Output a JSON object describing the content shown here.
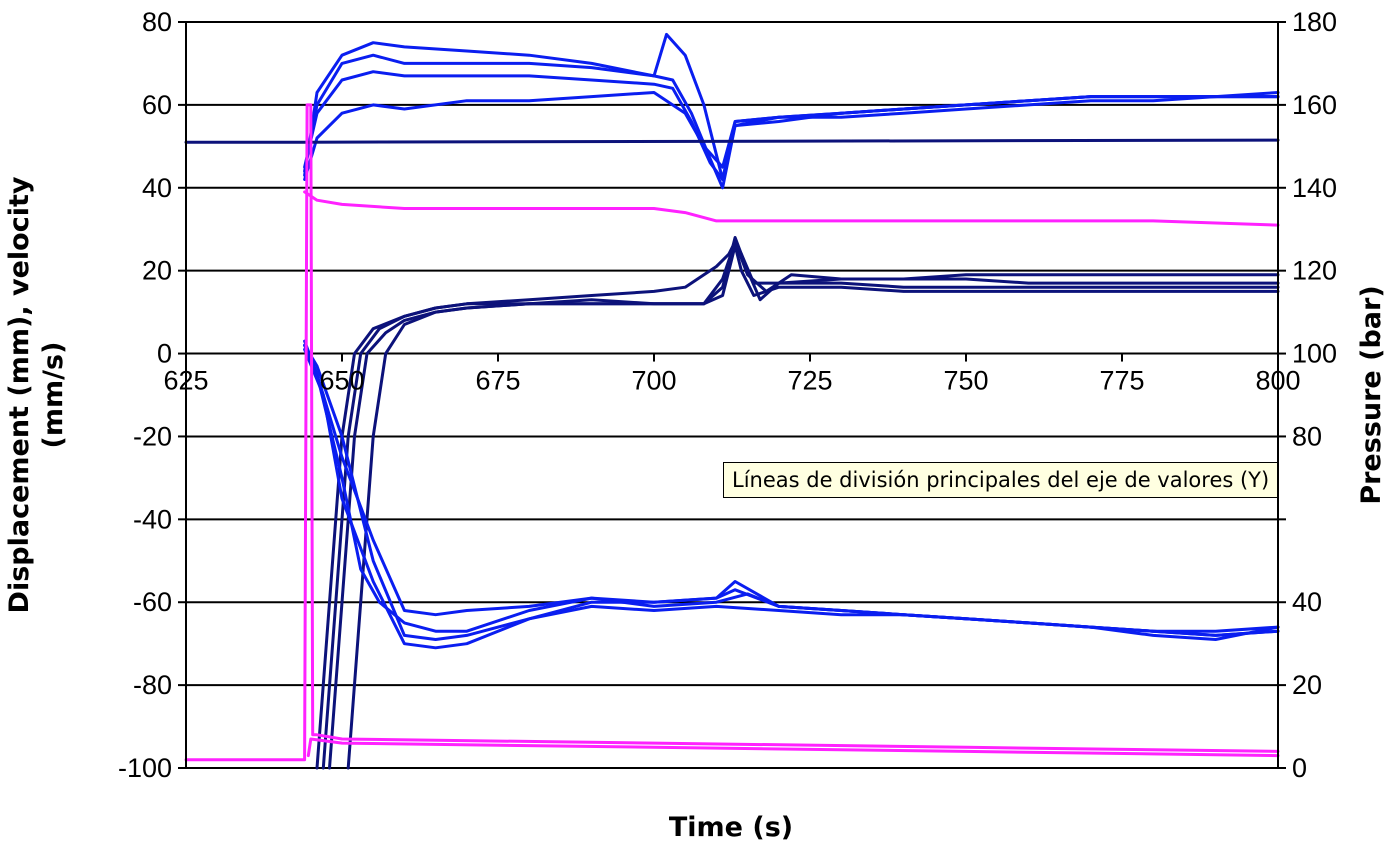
{
  "chart_data": {
    "type": "line",
    "title": "",
    "xlabel": "Time (s)",
    "ylabel": "Displacement (mm), velocity\n(mm/s)",
    "y2label": "Pressure (bar)",
    "xlim": [
      625,
      800
    ],
    "ylim": [
      -100,
      80
    ],
    "y2lim": [
      0,
      180
    ],
    "x_ticks": [
      625,
      650,
      675,
      700,
      725,
      750,
      775,
      800
    ],
    "x_tick_labels": [
      "625",
      "650",
      "675",
      "700",
      "725",
      "750",
      "775",
      "800"
    ],
    "y_ticks": [
      -100,
      -80,
      -60,
      -40,
      -20,
      0,
      20,
      40,
      60,
      80
    ],
    "y_tick_labels": [
      "-100",
      "-80",
      "-60",
      "-40",
      "-20",
      "0",
      "20",
      "40",
      "60",
      "80"
    ],
    "y2_ticks": [
      0,
      20,
      40,
      60,
      80,
      100,
      120,
      140,
      160,
      180
    ],
    "y2_tick_labels": [
      "0",
      "20",
      "40",
      "",
      "80",
      "100",
      "120",
      "140",
      "160",
      "180"
    ],
    "grid": "horizontal major gridlines",
    "legend": "none",
    "colors": {
      "blue": "#0a1ef0",
      "navy": "#0c127a",
      "magenta": "#ff22ff",
      "grid": "#000000"
    },
    "series": [
      {
        "axis": "y",
        "color": "#0a1ef0",
        "x": [
          644,
          646,
          650,
          655,
          660,
          670,
          680,
          690,
          700,
          702,
          705,
          708,
          711,
          713,
          720,
          730,
          740,
          750,
          760,
          770,
          780,
          790,
          800
        ],
        "y": [
          43,
          63,
          72,
          75,
          74,
          73,
          72,
          70,
          67,
          77,
          72,
          60,
          42,
          55,
          56,
          58,
          59,
          60,
          61,
          62,
          62,
          62,
          63
        ]
      },
      {
        "axis": "y",
        "color": "#0a1ef0",
        "x": [
          644,
          646,
          650,
          655,
          660,
          670,
          680,
          690,
          700,
          703,
          706,
          709,
          711,
          713,
          720,
          730,
          740,
          750,
          760,
          770,
          780,
          790,
          800
        ],
        "y": [
          44,
          60,
          70,
          72,
          70,
          70,
          70,
          69,
          67,
          66,
          58,
          47,
          40,
          55,
          57,
          57,
          58,
          59,
          60,
          61,
          61,
          62,
          62
        ]
      },
      {
        "axis": "y",
        "color": "#0a1ef0",
        "x": [
          644,
          646,
          650,
          655,
          660,
          670,
          680,
          690,
          700,
          703,
          706,
          709,
          711,
          713,
          720,
          730,
          740,
          750,
          760,
          770,
          780,
          790,
          800
        ],
        "y": [
          45,
          58,
          66,
          68,
          67,
          67,
          67,
          66,
          65,
          64,
          56,
          46,
          42,
          56,
          57,
          58,
          59,
          60,
          61,
          62,
          62,
          62,
          62
        ]
      },
      {
        "axis": "y",
        "color": "#0a1ef0",
        "x": [
          644,
          646,
          650,
          655,
          660,
          670,
          680,
          690,
          700,
          705,
          708,
          711,
          713,
          720,
          730,
          740,
          750,
          760,
          770,
          780,
          790,
          800
        ],
        "y": [
          42,
          52,
          58,
          60,
          59,
          61,
          61,
          62,
          63,
          58,
          50,
          45,
          56,
          57,
          58,
          59,
          60,
          61,
          62,
          62,
          62,
          62
        ]
      },
      {
        "axis": "y",
        "color": "#0c127a",
        "x": [
          625,
          644,
          800
        ],
        "y": [
          51,
          51,
          51.5
        ]
      },
      {
        "axis": "y",
        "color": "#ff22ff",
        "x": [
          644,
          646,
          650,
          660,
          680,
          700,
          705,
          710,
          720,
          740,
          760,
          780,
          800
        ],
        "y": [
          39,
          37,
          36,
          35,
          35,
          35,
          34,
          32,
          32,
          32,
          32,
          32,
          31
        ]
      },
      {
        "axis": "y",
        "color": "#0c127a",
        "x": [
          646,
          648,
          650,
          652,
          655,
          660,
          665,
          670,
          680,
          690,
          700,
          705,
          708,
          710,
          712,
          713,
          714,
          716,
          720,
          730,
          740,
          750,
          760,
          770,
          780,
          790,
          800
        ],
        "y": [
          -100,
          -60,
          -20,
          0,
          6,
          9,
          11,
          12,
          13,
          14,
          15,
          16,
          19,
          21,
          24,
          27,
          24,
          17,
          17,
          18,
          18,
          19,
          19,
          19,
          19,
          19,
          19
        ]
      },
      {
        "axis": "y",
        "color": "#0c127a",
        "x": [
          647,
          649,
          651,
          653,
          656,
          660,
          665,
          670,
          680,
          690,
          700,
          708,
          711,
          713,
          714,
          716,
          720,
          730,
          740,
          750,
          760,
          770,
          780,
          790,
          800
        ],
        "y": [
          -100,
          -60,
          -20,
          0,
          6,
          9,
          11,
          12,
          12,
          13,
          12,
          12,
          14,
          26,
          20,
          14,
          16,
          16,
          15,
          15,
          15,
          15,
          15,
          15,
          15
        ]
      },
      {
        "axis": "y",
        "color": "#0c127a",
        "x": [
          648,
          650,
          652,
          654,
          657,
          660,
          665,
          670,
          680,
          690,
          700,
          708,
          711,
          713,
          715,
          717,
          720,
          730,
          740,
          750,
          760,
          770,
          780,
          790,
          800
        ],
        "y": [
          -100,
          -60,
          -20,
          0,
          5,
          8,
          10,
          11,
          12,
          12,
          12,
          12,
          16,
          28,
          20,
          13,
          17,
          17,
          16,
          16,
          16,
          16,
          16,
          16,
          16
        ]
      },
      {
        "axis": "y",
        "color": "#0c127a",
        "x": [
          651,
          653,
          655,
          657,
          660,
          665,
          670,
          680,
          690,
          700,
          708,
          711,
          713,
          715,
          718,
          722,
          730,
          740,
          750,
          760,
          770,
          780,
          790,
          800
        ],
        "y": [
          -100,
          -60,
          -20,
          0,
          7,
          10,
          11,
          12,
          12,
          12,
          12,
          18,
          27,
          19,
          15,
          19,
          18,
          18,
          18,
          17,
          17,
          17,
          17,
          17
        ]
      },
      {
        "axis": "y",
        "color": "#0a1ef0",
        "x": [
          644,
          646,
          650,
          655,
          660,
          665,
          670,
          680,
          690,
          700,
          710,
          713,
          720,
          730,
          740,
          750,
          760,
          770,
          780,
          790,
          800
        ],
        "y": [
          3,
          -5,
          -25,
          -45,
          -62,
          -63,
          -62,
          -61,
          -59,
          -60,
          -59,
          -55,
          -61,
          -62,
          -63,
          -64,
          -65,
          -66,
          -67,
          -68,
          -67
        ]
      },
      {
        "axis": "y",
        "color": "#0a1ef0",
        "x": [
          644,
          646,
          650,
          655,
          660,
          665,
          670,
          680,
          690,
          700,
          710,
          713,
          720,
          730,
          740,
          750,
          760,
          770,
          780,
          790,
          800
        ],
        "y": [
          2,
          -3,
          -20,
          -50,
          -68,
          -69,
          -68,
          -64,
          -60,
          -60,
          -59,
          -57,
          -61,
          -62,
          -63,
          -64,
          -65,
          -66,
          -67,
          -68,
          -67
        ]
      },
      {
        "axis": "y",
        "color": "#0a1ef0",
        "x": [
          644,
          646,
          650,
          653,
          656,
          660,
          665,
          670,
          680,
          690,
          700,
          710,
          715,
          720,
          730,
          740,
          750,
          760,
          770,
          780,
          790,
          800
        ],
        "y": [
          2,
          -5,
          -30,
          -52,
          -60,
          -65,
          -67,
          -67,
          -62,
          -59,
          -61,
          -60,
          -58,
          -61,
          -62,
          -63,
          -64,
          -65,
          -66,
          -67,
          -67,
          -66
        ]
      },
      {
        "axis": "y",
        "color": "#0a1ef0",
        "x": [
          644,
          647,
          650,
          655,
          660,
          665,
          670,
          680,
          690,
          700,
          710,
          720,
          730,
          740,
          750,
          760,
          770,
          780,
          790,
          800
        ],
        "y": [
          1,
          -10,
          -35,
          -55,
          -70,
          -71,
          -70,
          -64,
          -61,
          -62,
          -61,
          -62,
          -63,
          -63,
          -64,
          -65,
          -66,
          -68,
          -69,
          -66
        ]
      },
      {
        "axis": "y2",
        "color": "#ff22ff",
        "x": [
          625,
          644,
          644.4,
          645,
          645.3,
          646,
          650,
          700,
          750,
          800
        ],
        "y": [
          2,
          2,
          160,
          160,
          8,
          8,
          7,
          6,
          5,
          4
        ]
      },
      {
        "axis": "y2",
        "color": "#ff22ff",
        "x": [
          644.6,
          645,
          650,
          700,
          750,
          800
        ],
        "y": [
          3,
          7,
          6,
          5,
          4,
          3
        ]
      }
    ]
  },
  "tooltip": {
    "text": "Líneas de división principales del eje de valores (Y)"
  }
}
